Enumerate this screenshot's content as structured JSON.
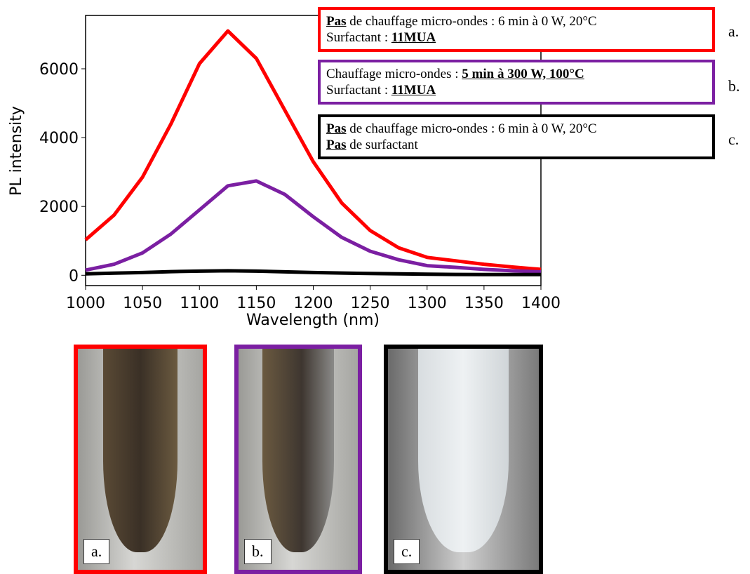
{
  "chart_data": {
    "type": "line",
    "x_label": "Wavelength (nm)",
    "y_label": "PL intensity",
    "x": [
      1000,
      1025,
      1050,
      1075,
      1100,
      1125,
      1150,
      1175,
      1200,
      1225,
      1250,
      1275,
      1300,
      1325,
      1350,
      1375,
      1400
    ],
    "series": [
      {
        "color": "#ff0000",
        "values": [
          1030,
          1750,
          2850,
          4400,
          6150,
          7100,
          6300,
          4800,
          3300,
          2100,
          1300,
          800,
          520,
          420,
          320,
          240,
          170
        ]
      },
      {
        "color": "#7b1fa2",
        "values": [
          150,
          320,
          650,
          1200,
          1900,
          2600,
          2740,
          2350,
          1700,
          1100,
          700,
          450,
          280,
          230,
          170,
          130,
          100
        ]
      },
      {
        "color": "#000000",
        "values": [
          40,
          60,
          80,
          105,
          120,
          130,
          120,
          100,
          80,
          65,
          50,
          40,
          30,
          25,
          22,
          20,
          20
        ]
      }
    ],
    "xlim": [
      1000,
      1400
    ],
    "ylim": [
      -300,
      7550
    ],
    "xticks": [
      1000,
      1050,
      1100,
      1150,
      1200,
      1250,
      1300,
      1350,
      1400
    ],
    "yticks": [
      0,
      2000,
      4000,
      6000
    ]
  },
  "legend_boxes": [
    {
      "color": "#ff0000",
      "label": "a.",
      "lines": [
        [
          "Pas",
          " de chauffage micro-ondes : 6 min à 0 W, 20°C"
        ],
        [
          "Surfactant : ",
          "11MUA"
        ]
      ]
    },
    {
      "color": "#7b1fa2",
      "label": "b.",
      "lines": [
        [
          "Chauffage micro-ondes : ",
          "5 min à 300 W, 100°C"
        ],
        [
          "Surfactant : ",
          "11MUA"
        ]
      ]
    },
    {
      "color": "#000000",
      "label": "c.",
      "lines": [
        [
          "Pas",
          " de chauffage micro-ondes : 6 min à 0 W, 20°C"
        ],
        [
          "Pas",
          " de surfactant"
        ]
      ]
    }
  ],
  "photos": [
    {
      "label": "a."
    },
    {
      "label": "b."
    },
    {
      "label": "c."
    }
  ]
}
